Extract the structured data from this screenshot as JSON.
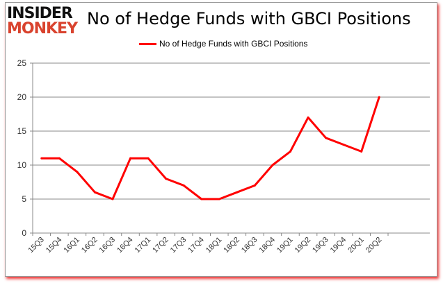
{
  "logo": {
    "line1": "INSIDER",
    "line2": "MONKEY"
  },
  "chart_data": {
    "type": "line",
    "title": "No of Hedge Funds with GBCI Positions",
    "categories": [
      "15Q3",
      "15Q4",
      "16Q1",
      "16Q2",
      "16Q3",
      "16Q4",
      "17Q1",
      "17Q2",
      "17Q3",
      "17Q4",
      "18Q1",
      "18Q2",
      "18Q3",
      "18Q4",
      "19Q1",
      "19Q2",
      "19Q3",
      "19Q4",
      "20Q1",
      "20Q2"
    ],
    "series": [
      {
        "name": "No of Hedge Funds with GBCI Positions",
        "color": "#ff0000",
        "values": [
          11,
          11,
          9,
          6,
          5,
          11,
          11,
          8,
          7,
          5,
          5,
          6,
          7,
          10,
          12,
          17,
          14,
          13,
          12,
          20
        ]
      }
    ],
    "ylim": [
      0,
      25
    ],
    "yticks": [
      0,
      5,
      10,
      15,
      20,
      25
    ],
    "grid": true,
    "legend": "top-center",
    "xlabel": "",
    "ylabel": ""
  }
}
